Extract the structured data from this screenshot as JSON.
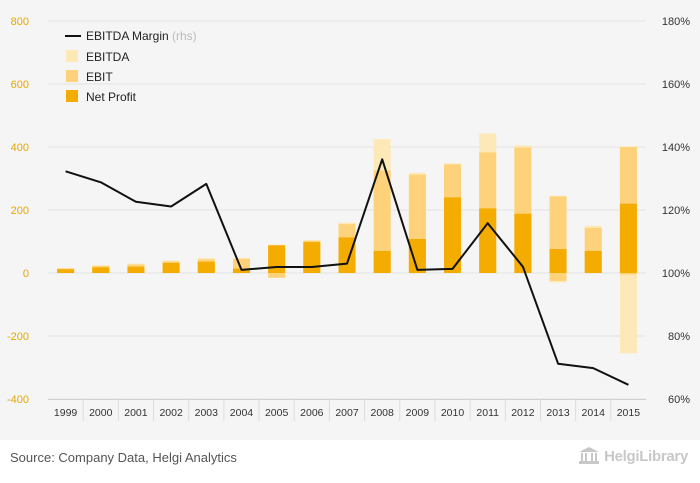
{
  "chart_data": {
    "type": "bar",
    "categories": [
      "1999",
      "2000",
      "2001",
      "2002",
      "2003",
      "2004",
      "2005",
      "2006",
      "2007",
      "2008",
      "2009",
      "2010",
      "2011",
      "2012",
      "2013",
      "2014",
      "2015"
    ],
    "series": [
      {
        "name": "EBITDA",
        "kind": "bar",
        "axis": "left",
        "color": "#fde9b8",
        "values": [
          16,
          25,
          30,
          40,
          48,
          48,
          90,
          105,
          160,
          425,
          318,
          348,
          443,
          405,
          245,
          150,
          402
        ]
      },
      {
        "name": "EBIT",
        "kind": "bar",
        "axis": "left",
        "color": "#fdd27a",
        "values": [
          14,
          22,
          27,
          37,
          43,
          45,
          87,
          102,
          155,
          325,
          312,
          345,
          383,
          398,
          243,
          143,
          400
        ]
      },
      {
        "name": "Net Profit",
        "kind": "bar",
        "axis": "left",
        "color": "#f5ac00",
        "values": [
          12,
          18,
          20,
          32,
          36,
          14,
          88,
          98,
          113,
          70,
          108,
          240,
          205,
          188,
          76,
          70,
          220
        ]
      },
      {
        "name": "EBITDA Margin",
        "note": "(rhs)",
        "kind": "line",
        "axis": "right",
        "color": "#111111",
        "values": [
          132.3,
          128.8,
          122.6,
          121.1,
          128.3,
          101.0,
          101.9,
          101.9,
          103.0,
          136.1,
          101.0,
          101.3,
          115.8,
          102.0,
          71.2,
          69.8,
          64.5
        ]
      }
    ],
    "negative_parts": {
      "EBITDA": [
        0,
        0,
        0,
        0,
        0,
        0,
        -15,
        0,
        0,
        0,
        0,
        0,
        0,
        0,
        -30,
        0,
        -255
      ],
      "EBIT": [
        0,
        0,
        0,
        0,
        0,
        0,
        -15,
        0,
        0,
        0,
        0,
        0,
        0,
        0,
        -25,
        0,
        -5
      ]
    },
    "y_left": {
      "min": -400,
      "max": 800,
      "ticks": [
        800,
        600,
        400,
        200,
        0,
        -200,
        -400
      ]
    },
    "y_right": {
      "min": 60,
      "max": 180,
      "ticks": [
        "180%",
        "160%",
        "140%",
        "120%",
        "100%",
        "80%",
        "60%"
      ],
      "tick_values": [
        180,
        160,
        140,
        120,
        100,
        80,
        60
      ]
    },
    "legend_position": "top-left",
    "grid": true
  },
  "footer": {
    "source": "Source: Company Data, Helgi Analytics",
    "logo_text": "HelgiLibrary"
  }
}
